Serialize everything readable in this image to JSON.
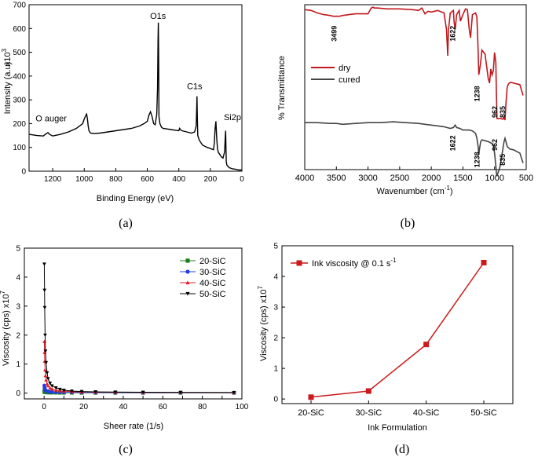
{
  "chart_data": [
    {
      "panel": "a",
      "type": "line",
      "caption": "(a)",
      "xlabel": "Binding Energy (eV)",
      "ylabel": "Intensity (a.u)",
      "y_multiplier": "x10",
      "y_multiplier_exp": "3",
      "xlim": [
        1350,
        0
      ],
      "ylim": [
        0,
        700
      ],
      "xticks": [
        1200,
        1000,
        800,
        600,
        400,
        200,
        0
      ],
      "yticks": [
        0,
        100,
        200,
        300,
        400,
        500,
        600,
        700
      ],
      "color": "#000000",
      "x": [
        1350,
        1300,
        1260,
        1240,
        1230,
        1220,
        1200,
        1150,
        1100,
        1050,
        1010,
        1000,
        990,
        985,
        980,
        975,
        970,
        960,
        940,
        900,
        850,
        800,
        750,
        700,
        650,
        620,
        600,
        590,
        580,
        570,
        560,
        550,
        540,
        535,
        532,
        530,
        528,
        526,
        520,
        510,
        500,
        480,
        450,
        420,
        400,
        395,
        390,
        380,
        350,
        320,
        300,
        290,
        287,
        285,
        283,
        280,
        270,
        250,
        220,
        200,
        180,
        175,
        170,
        165,
        160,
        155,
        150,
        140,
        130,
        120,
        110,
        105,
        103,
        101,
        99,
        95,
        80,
        60,
        40,
        20,
        0
      ],
      "y": [
        155,
        150,
        148,
        158,
        162,
        155,
        148,
        155,
        165,
        180,
        200,
        220,
        235,
        240,
        220,
        190,
        170,
        160,
        158,
        160,
        165,
        170,
        175,
        180,
        190,
        200,
        210,
        235,
        250,
        230,
        200,
        195,
        240,
        350,
        550,
        625,
        480,
        230,
        200,
        185,
        180,
        178,
        175,
        172,
        170,
        180,
        175,
        170,
        165,
        160,
        165,
        190,
        260,
        315,
        240,
        150,
        130,
        110,
        100,
        95,
        90,
        120,
        180,
        210,
        140,
        95,
        80,
        70,
        60,
        55,
        80,
        150,
        170,
        100,
        40,
        25,
        15,
        10,
        8,
        5,
        5
      ],
      "annotations": [
        {
          "text": "O1s",
          "x": 532,
          "y": 640
        },
        {
          "text": "C1s",
          "x": 300,
          "y": 345
        },
        {
          "text": "Si2p",
          "x": 60,
          "y": 215
        },
        {
          "text": "O auger",
          "x": 1210,
          "y": 210
        }
      ]
    },
    {
      "panel": "b",
      "type": "line",
      "caption": "(b)",
      "xlabel": "Wavenumber (cm",
      "xlabel_sup": "-1",
      "xlabel_end": ")",
      "ylabel": "% Transmittance",
      "xlim": [
        4000,
        500
      ],
      "ylim": [
        -100,
        100
      ],
      "xticks": [
        4000,
        3500,
        3000,
        2500,
        2000,
        1500,
        1000,
        500
      ],
      "legend": "left, middle",
      "series": [
        {
          "name": "dry",
          "color": "#c0171c",
          "x": [
            4000,
            3900,
            3800,
            3700,
            3600,
            3550,
            3500,
            3450,
            3400,
            3300,
            3200,
            3000,
            2950,
            2920,
            2900,
            2850,
            2700,
            2500,
            2300,
            2200,
            2150,
            2100,
            2050,
            2000,
            1900,
            1800,
            1760,
            1740,
            1730,
            1700,
            1650,
            1640,
            1622,
            1600,
            1560,
            1540,
            1500,
            1460,
            1430,
            1400,
            1380,
            1350,
            1300,
            1280,
            1260,
            1250,
            1238,
            1220,
            1200,
            1150,
            1100,
            1080,
            1060,
            1040,
            1020,
            1000,
            980,
            970,
            962,
            950,
            900,
            870,
            850,
            835,
            820,
            800,
            780,
            750,
            700,
            650,
            600,
            550
          ],
          "y": [
            94,
            93,
            90,
            88,
            87,
            86,
            86,
            86,
            87,
            88,
            89,
            89,
            96,
            97,
            96,
            96,
            95,
            95,
            94,
            93,
            96,
            89,
            92,
            91,
            93,
            90,
            70,
            38,
            68,
            90,
            93,
            80,
            70,
            88,
            93,
            80,
            88,
            95,
            94,
            70,
            60,
            88,
            90,
            85,
            44,
            15,
            20,
            30,
            45,
            40,
            10,
            5,
            22,
            15,
            20,
            42,
            30,
            -10,
            -38,
            -38,
            -38,
            -39,
            -37,
            -40,
            -20,
            0,
            4,
            6,
            5,
            4,
            3,
            -10
          ]
        },
        {
          "name": "cured",
          "color": "#444444",
          "x": [
            4000,
            3800,
            3600,
            3500,
            3400,
            3200,
            3000,
            2800,
            2600,
            2400,
            2200,
            2100,
            2000,
            1900,
            1800,
            1700,
            1650,
            1622,
            1600,
            1550,
            1500,
            1450,
            1400,
            1350,
            1300,
            1280,
            1260,
            1250,
            1238,
            1220,
            1200,
            1100,
            1050,
            1020,
            1000,
            980,
            970,
            962,
            950,
            920,
            900,
            880,
            850,
            835,
            820,
            800,
            760,
            700,
            650,
            600,
            550
          ],
          "y": [
            -43,
            -43,
            -44,
            -44,
            -45,
            -44,
            -43,
            -43,
            -42,
            -43,
            -44,
            -45,
            -46,
            -47,
            -48,
            -50,
            -49,
            -46,
            -49,
            -50,
            -52,
            -52,
            -52,
            -53,
            -56,
            -62,
            -72,
            -82,
            -75,
            -66,
            -64,
            -66,
            -68,
            -70,
            -80,
            -95,
            -105,
            -108,
            -105,
            -98,
            -90,
            -80,
            -66,
            -62,
            -66,
            -72,
            -75,
            -76,
            -78,
            -80,
            -92
          ]
        }
      ],
      "annotations": [
        {
          "text": "3499",
          "x": 3499,
          "y": 65
        },
        {
          "text": "1622",
          "x": 1622,
          "y": 65
        },
        {
          "text": "1238",
          "x": 1238,
          "y": -8
        },
        {
          "text": "962",
          "x": 962,
          "y": -30
        },
        {
          "text": "835",
          "x": 835,
          "y": -30
        },
        {
          "text": "1622",
          "x": 1622,
          "y": -68
        },
        {
          "text": "1238",
          "x": 1238,
          "y": -88
        },
        {
          "text": "962",
          "x": 962,
          "y": -70
        },
        {
          "text": "835",
          "x": 835,
          "y": -88
        }
      ]
    },
    {
      "panel": "c",
      "type": "line",
      "caption": "(c)",
      "xlabel": "Sheer rate (1/s)",
      "ylabel": "Viscosity (cps) x10",
      "ylabel_sup": "7",
      "xlim": [
        -10,
        100
      ],
      "ylim": [
        -0.2,
        5
      ],
      "xticks": [
        0,
        10,
        20,
        30,
        40,
        50,
        60,
        70,
        80,
        90,
        100
      ],
      "yticks": [
        0,
        1,
        2,
        3,
        4,
        5
      ],
      "legend": "top-right",
      "x": [
        0.1,
        0.2,
        0.3,
        0.5,
        0.7,
        1,
        1.5,
        2,
        3,
        4,
        6,
        8,
        10,
        14,
        19,
        26,
        36,
        50,
        69,
        96
      ],
      "series": [
        {
          "name": "20-SiC",
          "color": "#1a7f1a",
          "marker": "square",
          "values": [
            0.06,
            0.05,
            0.04,
            0.035,
            0.03,
            0.028,
            0.025,
            0.022,
            0.02,
            0.018,
            0.016,
            0.014,
            0.013,
            0.012,
            0.011,
            0.01,
            0.01,
            0.01,
            0.01,
            0.01
          ]
        },
        {
          "name": "30-SiC",
          "color": "#1f3fe0",
          "marker": "circle",
          "values": [
            0.26,
            0.2,
            0.16,
            0.12,
            0.1,
            0.08,
            0.065,
            0.055,
            0.045,
            0.038,
            0.032,
            0.028,
            0.025,
            0.022,
            0.02,
            0.018,
            0.016,
            0.015,
            0.014,
            0.013
          ]
        },
        {
          "name": "40-SiC",
          "color": "#e0202a",
          "marker": "triangle-up",
          "values": [
            1.78,
            1.4,
            1.1,
            0.8,
            0.6,
            0.45,
            0.32,
            0.25,
            0.18,
            0.14,
            0.1,
            0.08,
            0.065,
            0.05,
            0.04,
            0.035,
            0.03,
            0.025,
            0.022,
            0.02
          ]
        },
        {
          "name": "50-SiC",
          "color": "#000000",
          "marker": "triangle-down",
          "values": [
            4.45,
            3.55,
            2.95,
            2.0,
            1.45,
            1.05,
            0.7,
            0.5,
            0.34,
            0.25,
            0.18,
            0.13,
            0.1,
            0.07,
            0.055,
            0.045,
            0.035,
            0.03,
            0.025,
            0.02
          ]
        }
      ]
    },
    {
      "panel": "d",
      "type": "line",
      "caption": "(d)",
      "xlabel": "Ink Formulation",
      "ylabel": "Viscosity (cps) x10",
      "ylabel_sup": "7",
      "ylim": [
        -0.15,
        5
      ],
      "yticks": [
        0,
        1,
        2,
        3,
        4,
        5
      ],
      "legend": "top-left",
      "categories": [
        "20-SiC",
        "30-SiC",
        "40-SiC",
        "50-SiC"
      ],
      "series": [
        {
          "name": "Ink viscosity @ 0.1 s",
          "name_sup": "-1",
          "color": "#cc1a1a",
          "marker": "square",
          "values": [
            0.06,
            0.26,
            1.78,
            4.45
          ]
        }
      ]
    }
  ]
}
